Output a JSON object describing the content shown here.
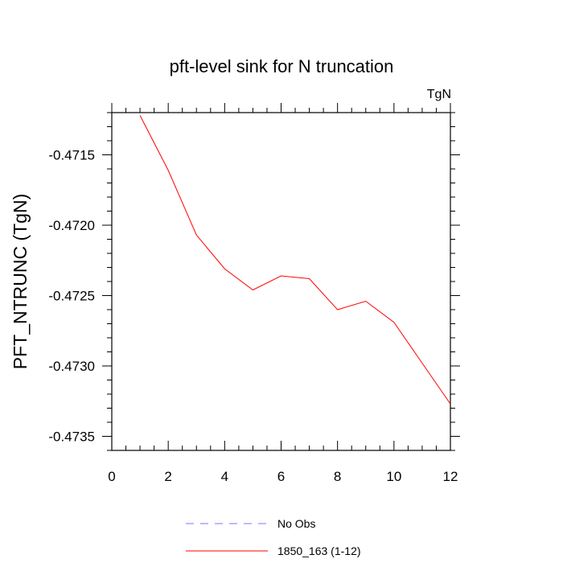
{
  "chart_data": {
    "type": "line",
    "title": "pft-level sink for N truncation",
    "units_label": "TgN",
    "ylabel": "PFT_NTRUNC  (TgN)",
    "xlabel": "",
    "xlim": [
      0,
      12
    ],
    "ylim": [
      -0.4736,
      -0.4712
    ],
    "x_ticks": [
      0,
      2,
      4,
      6,
      8,
      10,
      12
    ],
    "x_tick_labels": [
      "0",
      "2",
      "4",
      "6",
      "8",
      "10",
      "12"
    ],
    "y_ticks": [
      -0.4715,
      -0.472,
      -0.4725,
      -0.473,
      -0.4735
    ],
    "y_tick_labels": [
      "-0.4715",
      "-0.4720",
      "-0.4725",
      "-0.4730",
      "-0.4735"
    ],
    "grid": false,
    "legend_position": "bottom",
    "series": [
      {
        "name": "1850_163 (1-12)",
        "color": "#ff0000",
        "dash": "solid",
        "x": [
          1,
          2,
          3,
          4,
          5,
          6,
          7,
          8,
          9,
          10,
          11,
          12
        ],
        "y": [
          -0.47122,
          -0.47161,
          -0.47207,
          -0.47231,
          -0.47246,
          -0.47236,
          -0.47238,
          -0.4726,
          -0.47254,
          -0.47269,
          -0.47298,
          -0.47327
        ]
      }
    ],
    "legend": [
      {
        "label": "No Obs",
        "color": "#7777ff",
        "dash": "dashed"
      },
      {
        "label": "1850_163 (1-12)",
        "color": "#ff0000",
        "dash": "solid"
      }
    ]
  }
}
